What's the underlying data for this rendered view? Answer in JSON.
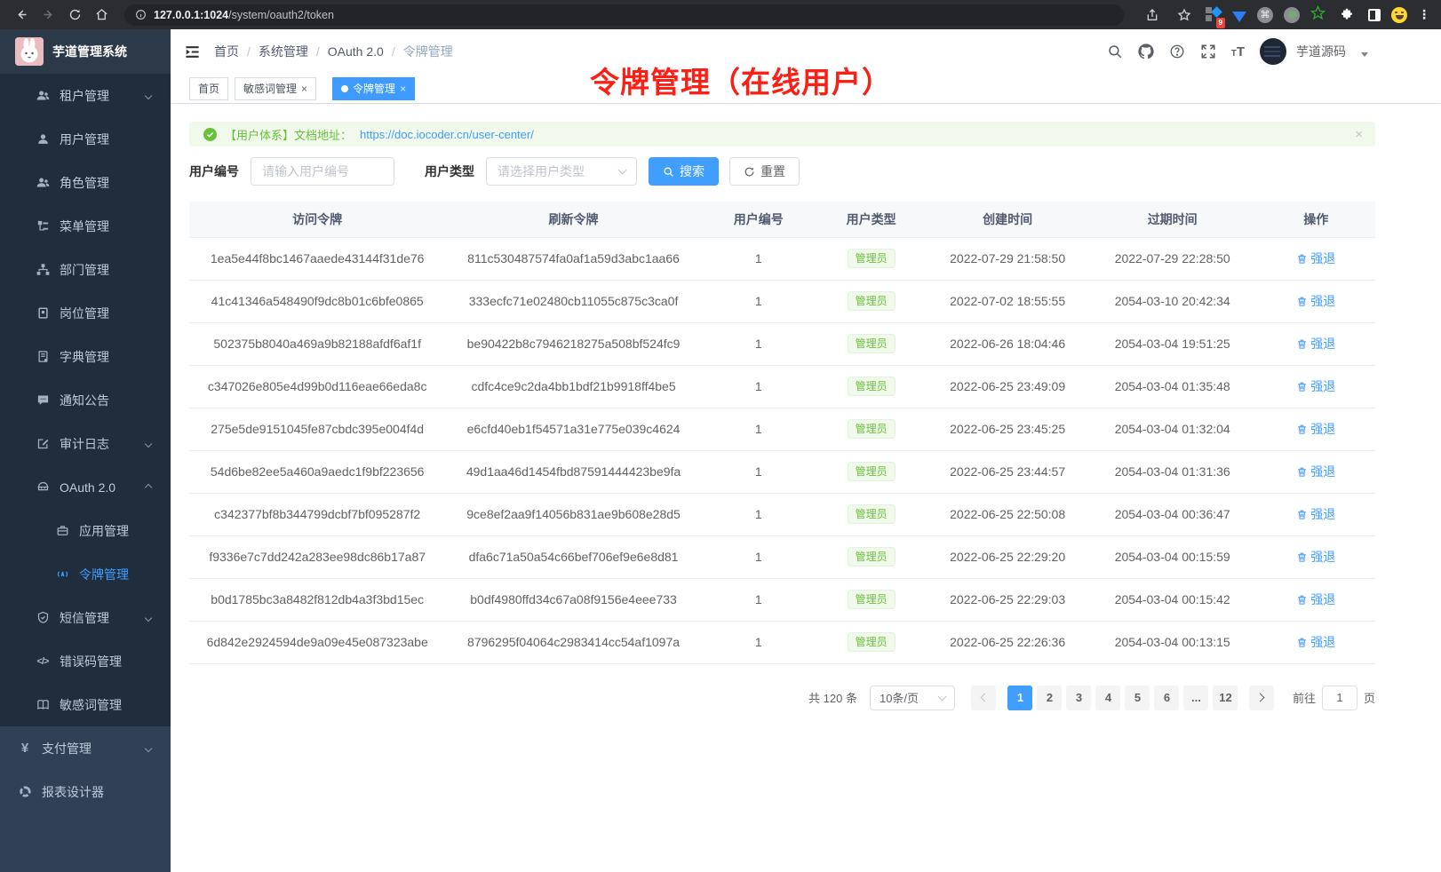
{
  "browser": {
    "url_host": "127.0.0.1:1024",
    "url_path": "/system/oauth2/token",
    "ext_badge": "9"
  },
  "icons": {
    "close": "×",
    "ellipsis-glyph": "⋮",
    "cmd-glyph": "⌘"
  },
  "sidebar": {
    "logo_title": "芋道管理系统",
    "items": [
      {
        "slug": "tenant",
        "icon": "users",
        "label": "租户管理",
        "level": 2,
        "arrow": "down"
      },
      {
        "slug": "user",
        "icon": "user",
        "label": "用户管理",
        "level": 2
      },
      {
        "slug": "role",
        "icon": "users",
        "label": "角色管理",
        "level": 2
      },
      {
        "slug": "menu",
        "icon": "tree",
        "label": "菜单管理",
        "level": 2
      },
      {
        "slug": "dept",
        "icon": "org",
        "label": "部门管理",
        "level": 2
      },
      {
        "slug": "post",
        "icon": "badge",
        "label": "岗位管理",
        "level": 2
      },
      {
        "slug": "dict",
        "icon": "dict",
        "label": "字典管理",
        "level": 2
      },
      {
        "slug": "notice",
        "icon": "message",
        "label": "通知公告",
        "level": 2
      },
      {
        "slug": "audit-log",
        "icon": "edit",
        "label": "审计日志",
        "level": 2,
        "arrow": "down"
      },
      {
        "slug": "oauth2",
        "icon": "robot",
        "label": "OAuth 2.0",
        "level": 2,
        "arrow": "up"
      },
      {
        "slug": "oauth2-application",
        "icon": "briefcase",
        "label": "应用管理",
        "level": 3
      },
      {
        "slug": "oauth2-token",
        "icon": "signal",
        "label": "令牌管理",
        "level": 3,
        "active": true
      },
      {
        "slug": "sms",
        "icon": "shield",
        "label": "短信管理",
        "level": 2,
        "arrow": "down"
      },
      {
        "slug": "error-code",
        "icon": "code",
        "label": "错误码管理",
        "level": 2
      },
      {
        "slug": "sensitive-word",
        "icon": "bookopen",
        "label": "敏感词管理",
        "level": 2
      },
      {
        "slug": "pay",
        "icon": "yen",
        "label": "支付管理",
        "level": 1,
        "light": true,
        "arrow": "down"
      },
      {
        "slug": "report-designer",
        "icon": "pie",
        "label": "报表设计器",
        "level": 1,
        "light": true
      }
    ]
  },
  "header": {
    "breadcrumb": [
      "首页",
      "系统管理",
      "OAuth 2.0",
      "令牌管理"
    ],
    "separator": "/",
    "username": "芋道源码"
  },
  "tabs": [
    {
      "label": "首页"
    },
    {
      "label": "敏感词管理"
    },
    {
      "label": "令牌管理"
    }
  ],
  "annotation": {
    "text": "令牌管理（在线用户）"
  },
  "alert": {
    "text": "【用户体系】文档地址：",
    "link": "https://doc.iocoder.cn/user-center/"
  },
  "filters": {
    "user_id_label": "用户编号",
    "user_id_placeholder": "请输入用户编号",
    "user_type_label": "用户类型",
    "user_type_placeholder": "请选择用户类型",
    "search_label": "搜索",
    "reset_label": "重置"
  },
  "table": {
    "columns": [
      "访问令牌",
      "刷新令牌",
      "用户编号",
      "用户类型",
      "创建时间",
      "过期时间",
      "操作"
    ],
    "action_label": "强退",
    "rows": [
      {
        "access": "1ea5e44f8bc1467aaede43144f31de76",
        "refresh": "811c530487574fa0af1a59d3abc1aa66",
        "user_id": "1",
        "user_type": "管理员",
        "created": "2022-07-29 21:58:50",
        "expires": "2022-07-29 22:28:50"
      },
      {
        "access": "41c41346a548490f9dc8b01c6bfe0865",
        "refresh": "333ecfc71e02480cb11055c875c3ca0f",
        "user_id": "1",
        "user_type": "管理员",
        "created": "2022-07-02 18:55:55",
        "expires": "2054-03-10 20:42:34"
      },
      {
        "access": "502375b8040a469a9b82188afdf6af1f",
        "refresh": "be90422b8c7946218275a508bf524fc9",
        "user_id": "1",
        "user_type": "管理员",
        "created": "2022-06-26 18:04:46",
        "expires": "2054-03-04 19:51:25"
      },
      {
        "access": "c347026e805e4d99b0d116eae66eda8c",
        "refresh": "cdfc4ce9c2da4bb1bdf21b9918ff4be5",
        "user_id": "1",
        "user_type": "管理员",
        "created": "2022-06-25 23:49:09",
        "expires": "2054-03-04 01:35:48"
      },
      {
        "access": "275e5de9151045fe87cbdc395e004f4d",
        "refresh": "e6cfd40eb1f54571a31e775e039c4624",
        "user_id": "1",
        "user_type": "管理员",
        "created": "2022-06-25 23:45:25",
        "expires": "2054-03-04 01:32:04"
      },
      {
        "access": "54d6be82ee5a460a9aedc1f9bf223656",
        "refresh": "49d1aa46d1454fbd87591444423be9fa",
        "user_id": "1",
        "user_type": "管理员",
        "created": "2022-06-25 23:44:57",
        "expires": "2054-03-04 01:31:36"
      },
      {
        "access": "c342377bf8b344799dcbf7bf095287f2",
        "refresh": "9ce8ef2aa9f14056b831ae9b608e28d5",
        "user_id": "1",
        "user_type": "管理员",
        "created": "2022-06-25 22:50:08",
        "expires": "2054-03-04 00:36:47"
      },
      {
        "access": "f9336e7c7dd242a283ee98dc86b17a87",
        "refresh": "dfa6c71a50a54c66bef706ef9e6e8d81",
        "user_id": "1",
        "user_type": "管理员",
        "created": "2022-06-25 22:29:20",
        "expires": "2054-03-04 00:15:59"
      },
      {
        "access": "b0d1785bc3a8482f812db4a3f3bd15ec",
        "refresh": "b0df4980ffd34c67a08f9156e4eee733",
        "user_id": "1",
        "user_type": "管理员",
        "created": "2022-06-25 22:29:03",
        "expires": "2054-03-04 00:15:42"
      },
      {
        "access": "6d842e2924594de9a09e45e087323abe",
        "refresh": "8796295f04064c2983414cc54af1097a",
        "user_id": "1",
        "user_type": "管理员",
        "created": "2022-06-25 22:26:36",
        "expires": "2054-03-04 00:13:15"
      }
    ]
  },
  "pagination": {
    "total": "共 120 条",
    "page_size": "10条/页",
    "pages": [
      "1",
      "2",
      "3",
      "4",
      "5",
      "6",
      "...",
      "12"
    ],
    "active": "1",
    "goto": "前往",
    "jump": "1",
    "unit": "页"
  }
}
